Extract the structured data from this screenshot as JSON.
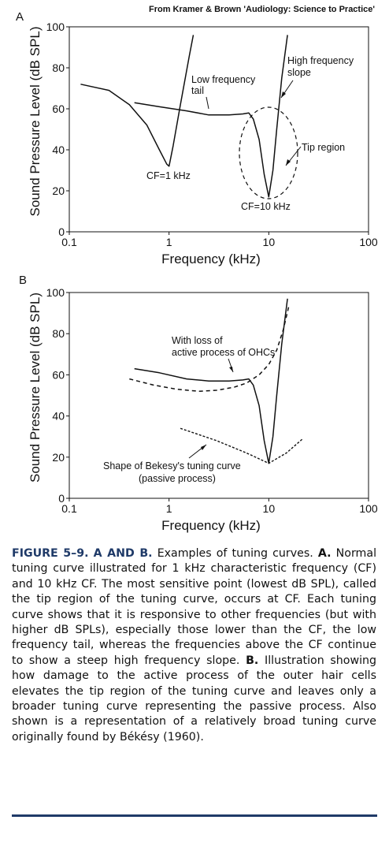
{
  "credit": "From Kramer & Brown 'Audiology: Science to Practice'",
  "chart_data": [
    {
      "panel": "A",
      "type": "line",
      "xlabel": "Frequency (kHz)",
      "ylabel": "Sound Pressure Level (dB SPL)",
      "xscale": "log",
      "xlim": [
        0.1,
        100
      ],
      "ylim": [
        0,
        100
      ],
      "xticks": [
        "0.1",
        "1",
        "10",
        "100"
      ],
      "yticks": [
        "0",
        "20",
        "40",
        "60",
        "80",
        "100"
      ],
      "grid": false,
      "series": [
        {
          "style": "solid",
          "x": [
            0.13,
            0.25,
            0.4,
            0.6,
            0.8,
            0.95,
            1.0,
            1.1,
            1.3,
            1.6,
            1.75
          ],
          "y": [
            72,
            69,
            62,
            52,
            40,
            33,
            32,
            42,
            62,
            86,
            96
          ]
        },
        {
          "style": "solid",
          "x": [
            0.45,
            0.8,
            1.5,
            2.5,
            4,
            5.5,
            6.3,
            7,
            8,
            9,
            10,
            11,
            12,
            13.5,
            15.4
          ],
          "y": [
            63,
            61,
            59,
            57,
            57,
            57.5,
            58,
            55,
            45,
            28,
            17,
            30,
            50,
            75,
            96
          ]
        }
      ],
      "annotations": [
        {
          "text": "Low frequency tail",
          "x": 2.8,
          "y": 57
        },
        {
          "text": "High frequency slope",
          "x": 13.5,
          "y": 66
        },
        {
          "text": "Tip region",
          "ellipse": {
            "cx": 10,
            "cy": 36,
            "note": "dashed ellipse"
          }
        },
        {
          "text": "CF=1 kHz",
          "x": 1,
          "y": 32
        },
        {
          "text": "CF=10 kHz",
          "x": 10,
          "y": 17
        }
      ]
    },
    {
      "panel": "B",
      "type": "line",
      "xlabel": "Frequency (kHz)",
      "ylabel": "Sound Pressure Level (dB SPL)",
      "xscale": "log",
      "xlim": [
        0.1,
        100
      ],
      "ylim": [
        0,
        100
      ],
      "xticks": [
        "0.1",
        "1",
        "10",
        "100"
      ],
      "yticks": [
        "0",
        "20",
        "40",
        "60",
        "80",
        "100"
      ],
      "grid": false,
      "series": [
        {
          "style": "solid",
          "x": [
            0.45,
            0.8,
            1.5,
            2.5,
            4,
            5.5,
            6.3,
            7,
            8,
            9,
            10,
            11,
            12,
            13.5,
            15.4
          ],
          "y": [
            63,
            61,
            58,
            57,
            57,
            57.5,
            58,
            55,
            45,
            28,
            17,
            30,
            50,
            75,
            97
          ]
        },
        {
          "style": "dashed",
          "x": [
            0.4,
            0.7,
            1.2,
            2,
            3,
            4.5,
            6,
            8,
            10,
            12,
            14,
            16
          ],
          "y": [
            58,
            55,
            53,
            52,
            52.5,
            54,
            56,
            60,
            65,
            72,
            82,
            94
          ]
        },
        {
          "style": "dotted",
          "x": [
            1.3,
            3,
            6,
            10,
            15,
            22
          ],
          "y": [
            34,
            28,
            22,
            17,
            22,
            29
          ]
        }
      ],
      "annotations": [
        {
          "text": "With loss of active process of OHCs",
          "x": 5,
          "y": 54
        },
        {
          "text": "Shape of Bekesy's tuning curve (passive process)",
          "x": 3.5,
          "y": 27
        }
      ]
    }
  ],
  "caption": {
    "figure_label": "FIGURE 5–9.",
    "heading": "A AND B.",
    "intro": "Examples of tuning curves.",
    "part_a_label": "A.",
    "part_a_text": "Normal tuning curve illustrated for 1 kHz characteristic frequency (CF) and 10 kHz CF. The most sensitive point (lowest dB SPL), called the tip region of the tuning curve, occurs at CF. Each tuning curve shows that it is responsive to other frequencies (but with higher dB SPLs), especially those lower than the CF, the low frequency tail, whereas the frequencies above the CF continue to show a steep high frequency slope.",
    "part_b_label": "B.",
    "part_b_text": "Illustration showing how damage to the active process of the outer hair cells elevates the tip region of the tuning curve and leaves only a broader tuning curve representing the passive process. Also shown is a representation of a relatively broad tuning curve originally found by Békésy (1960)."
  },
  "colors": {
    "caption_accent": "#1f3a68",
    "line": "#111111"
  }
}
